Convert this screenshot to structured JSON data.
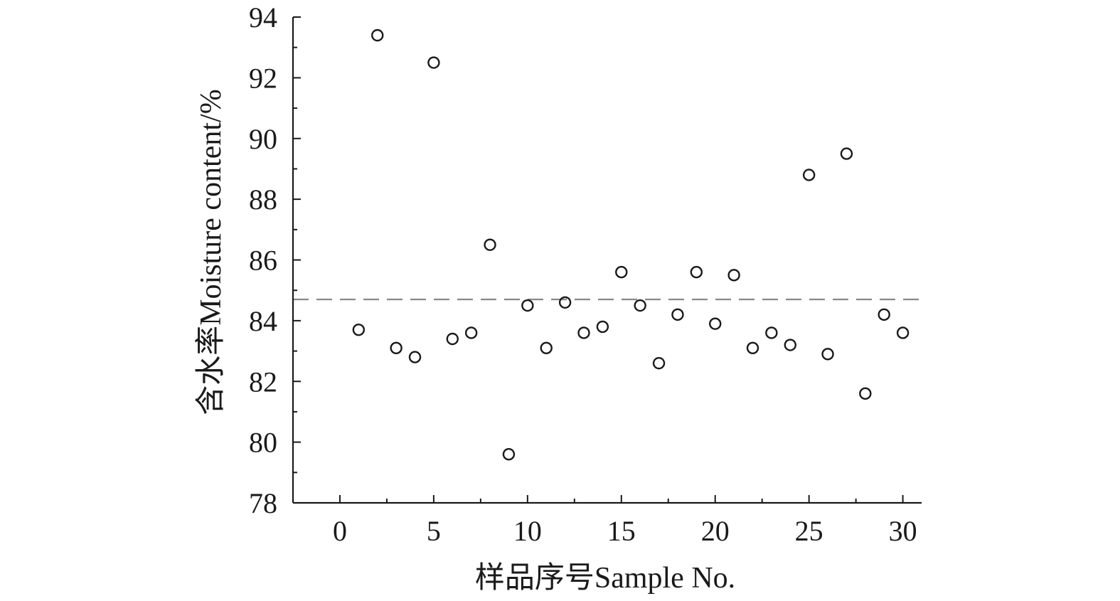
{
  "chart_data": {
    "type": "scatter",
    "title": "",
    "xlabel": "样品序号Sample No.",
    "ylabel": "含水率Moisture content/%",
    "xlim": [
      -2.5,
      31
    ],
    "ylim": [
      78,
      94
    ],
    "x_ticks": [
      0,
      5,
      10,
      15,
      20,
      25,
      30
    ],
    "x_minor_ticks": [
      2.5,
      7.5,
      12.5,
      17.5,
      22.5,
      27.5
    ],
    "y_ticks": [
      78,
      80,
      82,
      84,
      86,
      88,
      90,
      92,
      94
    ],
    "y_minor_ticks": [
      79,
      81,
      83,
      85,
      87,
      89,
      91,
      93
    ],
    "marker": "open-circle",
    "marker_color": "#1a1a1a",
    "reference_line": {
      "y": 84.7,
      "style": "dashed",
      "color": "#888888"
    },
    "grid": false,
    "points": [
      {
        "x": 1,
        "y": 83.7
      },
      {
        "x": 2,
        "y": 93.4
      },
      {
        "x": 3,
        "y": 83.1
      },
      {
        "x": 4,
        "y": 82.8
      },
      {
        "x": 5,
        "y": 92.5
      },
      {
        "x": 6,
        "y": 83.4
      },
      {
        "x": 7,
        "y": 83.6
      },
      {
        "x": 8,
        "y": 86.5
      },
      {
        "x": 9,
        "y": 79.6
      },
      {
        "x": 10,
        "y": 84.5
      },
      {
        "x": 11,
        "y": 83.1
      },
      {
        "x": 12,
        "y": 84.6
      },
      {
        "x": 13,
        "y": 83.6
      },
      {
        "x": 14,
        "y": 83.8
      },
      {
        "x": 15,
        "y": 85.6
      },
      {
        "x": 16,
        "y": 84.5
      },
      {
        "x": 17,
        "y": 82.6
      },
      {
        "x": 18,
        "y": 84.2
      },
      {
        "x": 19,
        "y": 85.6
      },
      {
        "x": 20,
        "y": 83.9
      },
      {
        "x": 21,
        "y": 85.5
      },
      {
        "x": 22,
        "y": 83.1
      },
      {
        "x": 23,
        "y": 83.6
      },
      {
        "x": 24,
        "y": 83.2
      },
      {
        "x": 25,
        "y": 88.8
      },
      {
        "x": 26,
        "y": 82.9
      },
      {
        "x": 27,
        "y": 89.5
      },
      {
        "x": 28,
        "y": 81.6
      },
      {
        "x": 29,
        "y": 84.2
      },
      {
        "x": 30,
        "y": 83.6
      }
    ]
  }
}
